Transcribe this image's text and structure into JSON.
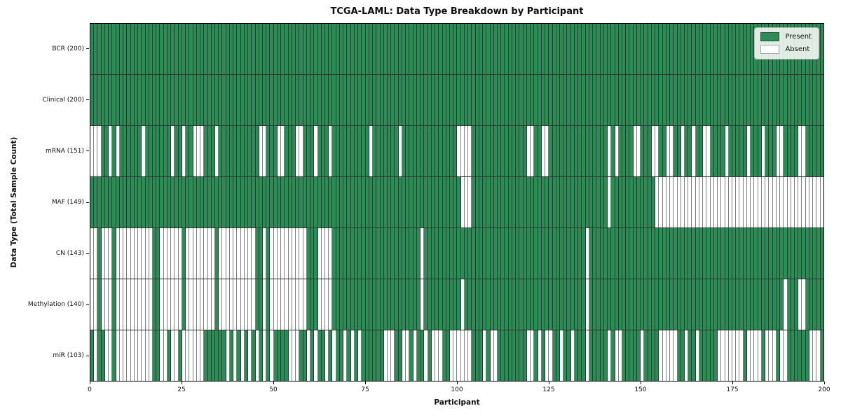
{
  "chart_data": {
    "type": "heatmap",
    "title": "TCGA-LAML: Data Type Breakdown by Participant",
    "xlabel": "Participant",
    "ylabel": "Data Type (Total Sample Count)",
    "x_min": 0,
    "x_max": 200,
    "x_ticks": [
      0,
      25,
      50,
      75,
      100,
      125,
      150,
      175,
      200
    ],
    "grid": false,
    "presence_encoding": "each string has 200 chars, one per participant: 1=Present, 0=Absent",
    "legend": {
      "position": "upper right",
      "entries": [
        {
          "label": "Present",
          "color": "#2e8b57"
        },
        {
          "label": "Absent",
          "color": "#ffffff"
        }
      ]
    },
    "colors": {
      "present": "#2e8b57",
      "absent": "#ffffff",
      "cell_border": "rgba(0,0,0,0.5)",
      "row_separator": "#000000"
    },
    "rows": [
      {
        "label": "BCR (200)",
        "data_type": "BCR",
        "present_count": 200,
        "presence": "11111111111111111111111111111111111111111111111111111111111111111111111111111111111111111111111111111111111111111111111111111111111111111111111111111111111111111111111111111111111111111111111111111111"
      },
      {
        "label": "Clinical (200)",
        "data_type": "Clinical",
        "present_count": 200,
        "presence": "11111111111111111111111111111111111111111111111111111111111111111111111111111111111111111111111111111111111111111111111111111111111111111111111111111111111111111111111111111111111111111111111111111111"
      },
      {
        "label": "mRNA (151)",
        "data_type": "mRNA",
        "present_count": 151,
        "presence": "00011010111111011111110110110001110111111111110011100111001110111011111111110111111101111111111111110000111111111111111001100111111111111111101011110011100110011011011001111011111011101110011110011111"
      },
      {
        "label": "MAF (149)",
        "data_type": "MAF",
        "present_count": 149,
        "presence": "11111111111111111111111111111111111111111111111111111111111111111111111111111111111111111111111111111000111111111111111111111111111111111111101111111111110000000000000000000000000000000000000000000000"
      },
      {
        "label": "CN (143)",
        "data_type": "CN",
        "present_count": 143,
        "presence": "00100010000000000110000001000000001000000000011010000000000111000011111111111111111111111101111111111111111111111111111111111111111111101111111111111111111111111111111111111111111111111111111111111111"
      },
      {
        "label": "Methylation (140)",
        "data_type": "Methylation",
        "present_count": 140,
        "presence": "00100010000000000110000001000000001000000000011010000000000111000011111111111111111111111101111111111011111111111111111111111111111111101111111111111111111111111111111111111111111111111111101110011111"
      },
      {
        "label": "miR (103)",
        "data_type": "miR",
        "present_count": 103,
        "presence": "10110010000000000110010010000001111110101010101010111100011010110101101010111111000110010110100011000000111010011111111001010011011011101111101001111101111000001101101111100000001000010001001111110001"
      }
    ]
  }
}
